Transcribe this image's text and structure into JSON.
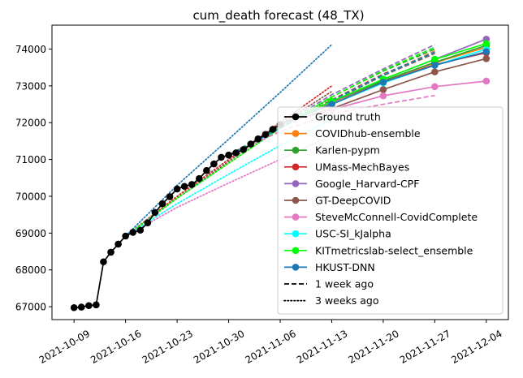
{
  "chart_data": {
    "type": "line",
    "title": "cum_death forecast (48_TX)",
    "xlabel": "",
    "ylabel": "",
    "x_ticks": [
      "2021-10-09",
      "2021-10-16",
      "2021-10-23",
      "2021-10-30",
      "2021-11-06",
      "2021-11-13",
      "2021-11-20",
      "2021-11-27",
      "2021-12-04"
    ],
    "y_ticks": [
      67000,
      68000,
      69000,
      70000,
      71000,
      72000,
      73000,
      74000
    ],
    "xlim": [
      "2021-10-06",
      "2021-12-07"
    ],
    "ylim": [
      66650,
      74650
    ],
    "grid": false,
    "legend_position": "center-right",
    "ground_truth": {
      "name": "Ground truth",
      "color": "#000000",
      "points": [
        [
          "2021-10-09",
          66975
        ],
        [
          "2021-10-10",
          66990
        ],
        [
          "2021-10-11",
          67030
        ],
        [
          "2021-10-12",
          67050
        ],
        [
          "2021-10-13",
          68220
        ],
        [
          "2021-10-14",
          68480
        ],
        [
          "2021-10-15",
          68700
        ],
        [
          "2021-10-16",
          68920
        ],
        [
          "2021-10-17",
          69020
        ],
        [
          "2021-10-18",
          69080
        ],
        [
          "2021-10-19",
          69280
        ],
        [
          "2021-10-20",
          69560
        ],
        [
          "2021-10-21",
          69800
        ],
        [
          "2021-10-22",
          69990
        ],
        [
          "2021-10-23",
          70200
        ],
        [
          "2021-10-24",
          70270
        ],
        [
          "2021-10-25",
          70320
        ],
        [
          "2021-10-26",
          70480
        ],
        [
          "2021-10-27",
          70700
        ],
        [
          "2021-10-28",
          70880
        ],
        [
          "2021-10-29",
          71060
        ],
        [
          "2021-10-30",
          71120
        ],
        [
          "2021-10-31",
          71180
        ],
        [
          "2021-11-01",
          71270
        ],
        [
          "2021-11-02",
          71420
        ],
        [
          "2021-11-03",
          71560
        ],
        [
          "2021-11-04",
          71680
        ],
        [
          "2021-11-05",
          71820
        ],
        [
          "2021-11-06",
          71950
        ]
      ]
    },
    "forecast_dates": [
      "2021-11-06",
      "2021-11-13",
      "2021-11-20",
      "2021-11-27",
      "2021-12-04"
    ],
    "series": [
      {
        "name": "COVIDhub-ensemble",
        "color": "#ff7f0e",
        "values": [
          71950,
          72550,
          73130,
          73630,
          74050
        ]
      },
      {
        "name": "Karlen-pypm",
        "color": "#2ca02c",
        "values": [
          71950,
          72560,
          73140,
          73640,
          74100
        ]
      },
      {
        "name": "UMass-MechBayes",
        "color": "#d62728",
        "values": [
          71950,
          72500,
          73100,
          73580,
          73900
        ]
      },
      {
        "name": "Google_Harvard-CPF",
        "color": "#9467bd",
        "values": [
          71950,
          72560,
          73180,
          73720,
          74270
        ]
      },
      {
        "name": "GT-DeepCOVID",
        "color": "#8c564b",
        "values": [
          71950,
          72380,
          72900,
          73380,
          73740
        ]
      },
      {
        "name": "SteveMcConnell-CovidComplete",
        "color": "#e377c2",
        "values": [
          71950,
          72360,
          72730,
          72980,
          73130
        ]
      },
      {
        "name": "USC-SI_kJalpha",
        "color": "#00ffff",
        "values": [
          71950,
          72500,
          73080,
          73560,
          74000
        ]
      },
      {
        "name": "KITmetricslab-select_ensemble",
        "color": "#00ff00",
        "values": [
          71950,
          72580,
          73180,
          73720,
          74150
        ]
      },
      {
        "name": "HKUST-DNN",
        "color": "#1f77b4",
        "values": [
          71950,
          72500,
          73100,
          73560,
          73930
        ]
      }
    ],
    "one_week_ago": {
      "dates": [
        "2021-10-30",
        "2021-11-06",
        "2021-11-13",
        "2021-11-20",
        "2021-11-27"
      ],
      "series": [
        {
          "color": "#ff7f0e",
          "values": [
            71120,
            71860,
            72600,
            73300,
            73950
          ]
        },
        {
          "color": "#2ca02c",
          "values": [
            71120,
            71880,
            72700,
            73400,
            74000
          ]
        },
        {
          "color": "#d62728",
          "values": [
            71120,
            71850,
            72620,
            73320,
            73900
          ]
        },
        {
          "color": "#9467bd",
          "values": [
            71120,
            71920,
            72760,
            73460,
            74120
          ]
        },
        {
          "color": "#8c564b",
          "values": [
            71120,
            71850,
            72580,
            73280,
            73880
          ]
        },
        {
          "color": "#e377c2",
          "values": [
            71120,
            71760,
            72250,
            72500,
            72740
          ]
        },
        {
          "color": "#00ffff",
          "values": [
            71120,
            71840,
            72600,
            73300,
            73920
          ]
        },
        {
          "color": "#00ff00",
          "values": [
            71120,
            71880,
            72700,
            73420,
            74050
          ]
        },
        {
          "color": "#1f77b4",
          "values": [
            71120,
            71850,
            72600,
            73300,
            73920
          ]
        }
      ]
    },
    "three_weeks_ago": {
      "dates": [
        "2021-10-16",
        "2021-10-23",
        "2021-10-30",
        "2021-11-06",
        "2021-11-13"
      ],
      "series": [
        {
          "color": "#ff7f0e",
          "values": [
            68920,
            69950,
            70900,
            71850,
            72700
          ]
        },
        {
          "color": "#2ca02c",
          "values": [
            68920,
            69950,
            70900,
            71850,
            72680
          ]
        },
        {
          "color": "#d62728",
          "values": [
            68920,
            70000,
            71000,
            72000,
            73000
          ]
        },
        {
          "color": "#9467bd",
          "values": [
            68920,
            69950,
            70900,
            71850,
            72700
          ]
        },
        {
          "color": "#8c564b",
          "values": [
            68920,
            69950,
            70950,
            71950,
            72850
          ]
        },
        {
          "color": "#e377c2",
          "values": [
            68920,
            69700,
            70360,
            71000,
            71650
          ]
        },
        {
          "color": "#00ffff",
          "values": [
            68920,
            69800,
            70600,
            71380,
            72100
          ]
        },
        {
          "color": "#00ff00",
          "values": [
            68920,
            69950,
            70900,
            71850,
            72700
          ]
        },
        {
          "color": "#1f77b4",
          "values": [
            68920,
            70300,
            71550,
            72820,
            74120
          ]
        }
      ]
    },
    "legend": [
      {
        "label": "Ground truth",
        "color": "#000000",
        "style": "solid",
        "marker": true
      },
      {
        "label": "COVIDhub-ensemble",
        "color": "#ff7f0e",
        "style": "solid",
        "marker": true
      },
      {
        "label": "Karlen-pypm",
        "color": "#2ca02c",
        "style": "solid",
        "marker": true
      },
      {
        "label": "UMass-MechBayes",
        "color": "#d62728",
        "style": "solid",
        "marker": true
      },
      {
        "label": "Google_Harvard-CPF",
        "color": "#9467bd",
        "style": "solid",
        "marker": true
      },
      {
        "label": "GT-DeepCOVID",
        "color": "#8c564b",
        "style": "solid",
        "marker": true
      },
      {
        "label": "SteveMcConnell-CovidComplete",
        "color": "#e377c2",
        "style": "solid",
        "marker": true
      },
      {
        "label": "USC-SI_kJalpha",
        "color": "#00ffff",
        "style": "solid",
        "marker": true
      },
      {
        "label": "KITmetricslab-select_ensemble",
        "color": "#00ff00",
        "style": "solid",
        "marker": true
      },
      {
        "label": "HKUST-DNN",
        "color": "#1f77b4",
        "style": "solid",
        "marker": true
      },
      {
        "label": "1 week ago",
        "color": "#000000",
        "style": "dashed",
        "marker": false
      },
      {
        "label": "3 weeks ago",
        "color": "#000000",
        "style": "dotted",
        "marker": false
      }
    ]
  }
}
